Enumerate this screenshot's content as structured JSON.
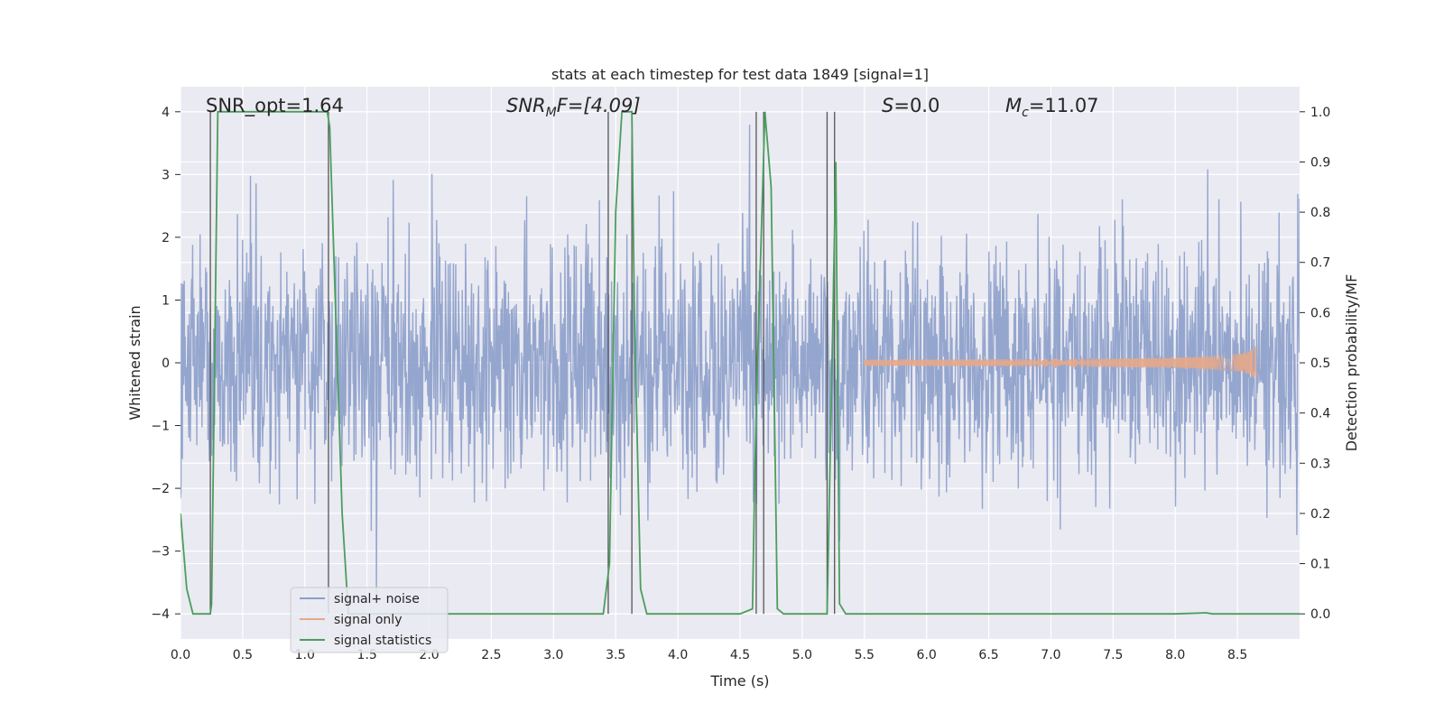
{
  "chart_data": {
    "type": "line",
    "title": "stats at each timestep for test data 1849 [signal=1]",
    "xlabel": "Time (s)",
    "ylabel_left": "Whitened strain",
    "ylabel_right": "Detection probability/MF",
    "xlim": [
      0.0,
      9.0
    ],
    "ylim_left": [
      -4.4,
      4.4
    ],
    "ylim_right": [
      -0.05,
      1.05
    ],
    "x_ticks": [
      "0.0",
      "0.5",
      "1.0",
      "1.5",
      "2.0",
      "2.5",
      "3.0",
      "3.5",
      "4.0",
      "4.5",
      "5.0",
      "5.5",
      "6.0",
      "6.5",
      "7.0",
      "7.5",
      "8.0",
      "8.5"
    ],
    "y_ticks_left": [
      "−4",
      "−3",
      "−2",
      "−1",
      "0",
      "1",
      "2",
      "3",
      "4"
    ],
    "y_ticks_right": [
      "0.0",
      "0.1",
      "0.2",
      "0.3",
      "0.4",
      "0.5",
      "0.6",
      "0.7",
      "0.8",
      "0.9",
      "1.0"
    ],
    "annotations": {
      "snr_opt": "SNR_opt=1.64",
      "snr_mf_label": "SNR",
      "snr_mf_sub": "M",
      "snr_mf_rest": "F=[4.09]",
      "s_label": "S",
      "s_value": "=0.0",
      "mc_label": "M",
      "mc_sub": "c",
      "mc_value": "=11.07"
    },
    "series": [
      {
        "name": "signal+ noise",
        "color": "#8c9fca",
        "approx_amplitude": 2.2,
        "x_range": [
          0.0,
          9.0
        ]
      },
      {
        "name": "signal only",
        "color": "#e5a98a",
        "chirp_start": 5.5,
        "chirp_end": 8.65,
        "peak_amplitude": 0.3
      },
      {
        "name": "signal statistics",
        "color": "#4c9e5c",
        "x": [
          0.0,
          0.05,
          0.1,
          0.24,
          0.25,
          0.3,
          0.32,
          0.4,
          1.0,
          1.18,
          1.2,
          1.3,
          1.35,
          1.5,
          2.0,
          3.0,
          3.4,
          3.45,
          3.5,
          3.55,
          3.6,
          3.63,
          3.65,
          3.7,
          3.75,
          4.0,
          4.5,
          4.6,
          4.62,
          4.64,
          4.7,
          4.75,
          4.8,
          4.85,
          4.9,
          5.0,
          5.2,
          5.24,
          5.27,
          5.3,
          5.35,
          5.4,
          6.0,
          7.0,
          8.0,
          8.25,
          8.3,
          8.5,
          9.0
        ],
        "y": [
          0.2,
          0.05,
          0.0,
          0.0,
          0.02,
          1.0,
          1.0,
          1.0,
          1.0,
          1.0,
          0.97,
          0.2,
          0.0,
          0.0,
          0.0,
          0.0,
          0.0,
          0.1,
          0.8,
          1.0,
          1.0,
          1.0,
          0.6,
          0.05,
          0.0,
          0.0,
          0.0,
          0.01,
          0.3,
          0.5,
          1.0,
          0.85,
          0.01,
          0.0,
          0.0,
          0.0,
          0.0,
          0.5,
          0.9,
          0.02,
          0.0,
          0.0,
          0.0,
          0.0,
          0.0,
          0.002,
          0.0,
          0.0,
          0.0
        ]
      }
    ],
    "vertical_lines": [
      0.24,
      1.19,
      3.44,
      3.63,
      4.63,
      4.69,
      5.2,
      5.26
    ],
    "vline_color": "#555555",
    "background_color": "#eaeaf2",
    "grid": true,
    "legend": {
      "placement": "lower-left",
      "entries": [
        {
          "label": "signal+ noise",
          "color": "#8c9fca"
        },
        {
          "label": "signal only",
          "color": "#e5a98a"
        },
        {
          "label": "signal statistics",
          "color": "#4c9e5c"
        }
      ]
    }
  }
}
